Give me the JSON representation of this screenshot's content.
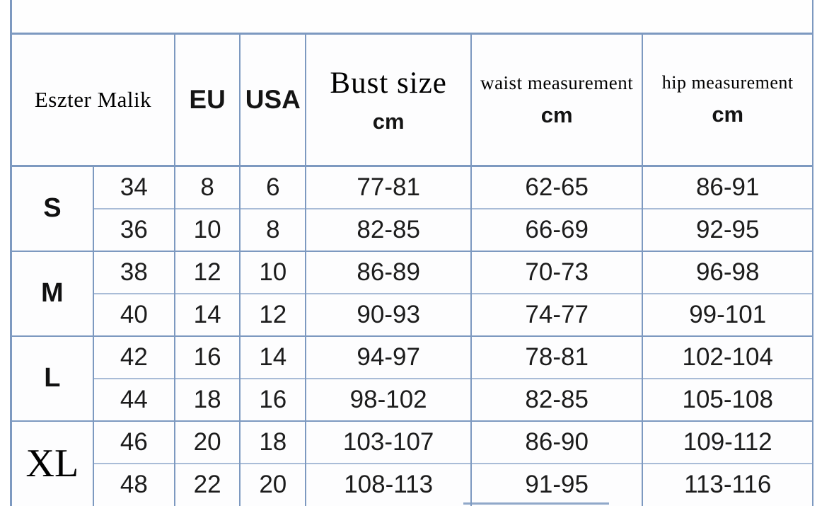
{
  "colors": {
    "border_major": "#7d99c0",
    "border_minor": "#a9bcd7",
    "text": "#161616"
  },
  "header": {
    "brand": "Eszter Malik",
    "eu": "EU",
    "usa": "USA",
    "bust": "Bust size",
    "waist": "waist measurement",
    "hip": "hip measurement",
    "unit_cm": "cm"
  },
  "groups": [
    {
      "size": "S",
      "rows": [
        {
          "num": "34",
          "eu": "8",
          "usa": "6",
          "bust": "77-81",
          "waist": "62-65",
          "hip": "86-91"
        },
        {
          "num": "36",
          "eu": "10",
          "usa": "8",
          "bust": "82-85",
          "waist": "66-69",
          "hip": "92-95"
        }
      ]
    },
    {
      "size": "M",
      "rows": [
        {
          "num": "38",
          "eu": "12",
          "usa": "10",
          "bust": "86-89",
          "waist": "70-73",
          "hip": "96-98"
        },
        {
          "num": "40",
          "eu": "14",
          "usa": "12",
          "bust": "90-93",
          "waist": "74-77",
          "hip": "99-101"
        }
      ]
    },
    {
      "size": "L",
      "rows": [
        {
          "num": "42",
          "eu": "16",
          "usa": "14",
          "bust": "94-97",
          "waist": "78-81",
          "hip": "102-104"
        },
        {
          "num": "44",
          "eu": "18",
          "usa": "16",
          "bust": "98-102",
          "waist": "82-85",
          "hip": "105-108"
        }
      ]
    },
    {
      "size": "XL",
      "rows": [
        {
          "num": "46",
          "eu": "20",
          "usa": "18",
          "bust": "103-107",
          "waist": "86-90",
          "hip": "109-112"
        },
        {
          "num": "48",
          "eu": "22",
          "usa": "20",
          "bust": "108-113",
          "waist": "91-95",
          "hip": "113-116"
        }
      ]
    }
  ],
  "chart_data": {
    "type": "table",
    "columns": [
      "Eszter Malik",
      "",
      "EU",
      "USA",
      "Bust size cm",
      "waist measurement cm",
      "hip measurement cm"
    ],
    "rows": [
      [
        "S",
        "34",
        "8",
        "6",
        "77-81",
        "62-65",
        "86-91"
      ],
      [
        "S",
        "36",
        "10",
        "8",
        "82-85",
        "66-69",
        "92-95"
      ],
      [
        "M",
        "38",
        "12",
        "10",
        "86-89",
        "70-73",
        "96-98"
      ],
      [
        "M",
        "40",
        "14",
        "12",
        "90-93",
        "74-77",
        "99-101"
      ],
      [
        "L",
        "42",
        "16",
        "14",
        "94-97",
        "78-81",
        "102-104"
      ],
      [
        "L",
        "44",
        "18",
        "16",
        "98-102",
        "82-85",
        "105-108"
      ],
      [
        "XL",
        "46",
        "20",
        "18",
        "103-107",
        "86-90",
        "109-112"
      ],
      [
        "XL",
        "48",
        "22",
        "20",
        "108-113",
        "91-95",
        "113-116"
      ]
    ]
  }
}
